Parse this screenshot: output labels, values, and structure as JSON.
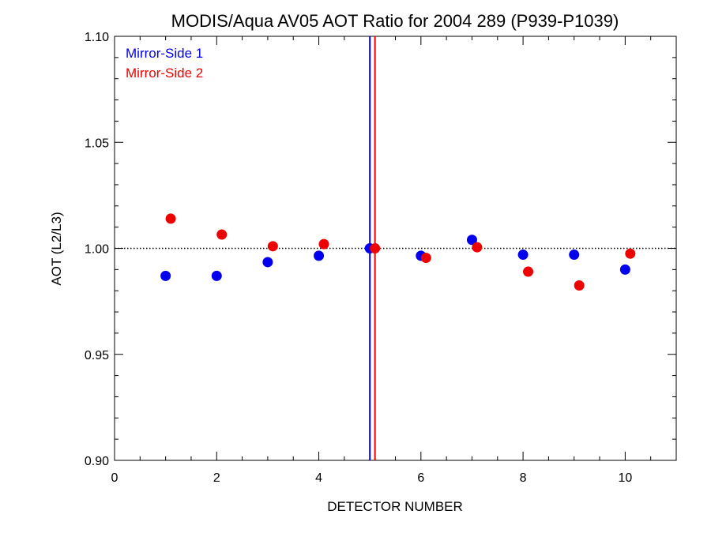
{
  "chart_data": {
    "type": "scatter",
    "title": "MODIS/Aqua AV05 AOT Ratio for 2004 289 (P939-P1039)",
    "xlabel": "DETECTOR NUMBER",
    "ylabel": "AOT (L2/L3)",
    "xlim": [
      0,
      11
    ],
    "ylim": [
      0.9,
      1.1
    ],
    "x_ticks": [
      0,
      2,
      4,
      6,
      8,
      10
    ],
    "x_tick_labels": [
      "0",
      "2",
      "4",
      "6",
      "8",
      "10"
    ],
    "y_ticks": [
      0.9,
      0.95,
      1.0,
      1.05,
      1.1
    ],
    "y_tick_labels": [
      "0.90",
      "0.95",
      "1.00",
      "1.05",
      "1.10"
    ],
    "reference_line_y": 1.0,
    "vertical_lines": [
      {
        "x": 5.0,
        "color": "#0000ee"
      },
      {
        "x": 5.1,
        "color": "#ee0000"
      }
    ],
    "legend_position": "top-left",
    "grid": false,
    "series": [
      {
        "name": "Mirror-Side 1",
        "color": "#0000ee",
        "x": [
          1,
          2,
          3,
          4,
          5,
          6,
          7,
          8,
          9,
          10
        ],
        "y": [
          0.987,
          0.987,
          0.9935,
          0.9965,
          1.0,
          0.9965,
          1.004,
          0.997,
          0.997,
          0.99
        ]
      },
      {
        "name": "Mirror-Side 2",
        "color": "#ee0000",
        "x": [
          1.1,
          2.1,
          3.1,
          4.1,
          5.1,
          6.1,
          7.1,
          8.1,
          9.1,
          10.1
        ],
        "y": [
          1.014,
          1.0065,
          1.001,
          1.002,
          1.0,
          0.9955,
          1.0005,
          0.989,
          0.9825,
          0.9975
        ]
      }
    ]
  }
}
